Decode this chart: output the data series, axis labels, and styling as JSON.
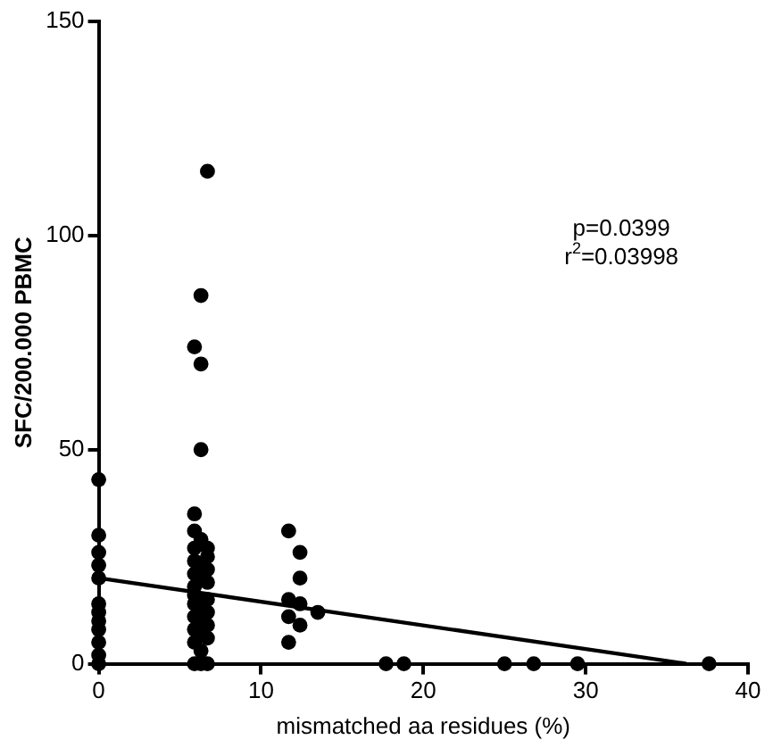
{
  "chart_data": {
    "type": "scatter",
    "xlabel": "mismatched aa residues (%)",
    "ylabel": "SFC/200.000 PBMC",
    "xlim": [
      0,
      40
    ],
    "xticks": [
      0,
      10,
      20,
      30,
      40
    ],
    "ylim": [
      0,
      150
    ],
    "yticks": [
      0,
      50,
      100,
      150
    ],
    "grid": false,
    "legend": false,
    "series": [
      {
        "color": "#000000",
        "marker": "circle",
        "x": [
          0,
          0,
          0,
          0,
          0,
          0,
          0,
          0,
          0,
          0,
          0,
          0,
          5.9,
          6.3,
          6.7,
          6.3,
          6.3,
          5.9,
          5.9,
          6.3,
          6.7,
          5.9,
          6.7,
          5.9,
          6.3,
          6.7,
          5.9,
          6.3,
          6.7,
          5.9,
          5.9,
          6.7,
          5.9,
          6.3,
          6.7,
          5.9,
          6.3,
          6.7,
          5.9,
          6.3,
          6.7,
          5.9,
          6.3,
          6.7,
          5.9,
          6.3,
          11.7,
          12.4,
          12.4,
          11.7,
          12.4,
          13.5,
          11.7,
          12.4,
          11.7,
          17.7,
          18.8,
          25,
          26.8,
          29.5,
          37.6
        ],
        "values": [
          43,
          30,
          26,
          23,
          20,
          14,
          12,
          10,
          8,
          5,
          2,
          0,
          74,
          86,
          115,
          70,
          50,
          35,
          31,
          29,
          27,
          27,
          25,
          24,
          23,
          22,
          21,
          20,
          19,
          18,
          16,
          15,
          14,
          13,
          12,
          11,
          10,
          9,
          8,
          7,
          6,
          5,
          3,
          0,
          0,
          0,
          31,
          26,
          20,
          15,
          14,
          12,
          11,
          9,
          5,
          0,
          0,
          0,
          0,
          0,
          0
        ]
      },
      {
        "type": "line",
        "color": "#000000",
        "marker": "none",
        "x": [
          0,
          36.2
        ],
        "values": [
          20,
          0
        ]
      }
    ],
    "annotations": [
      "p=0.0399",
      "r$^{2}$=0.03998"
    ]
  }
}
